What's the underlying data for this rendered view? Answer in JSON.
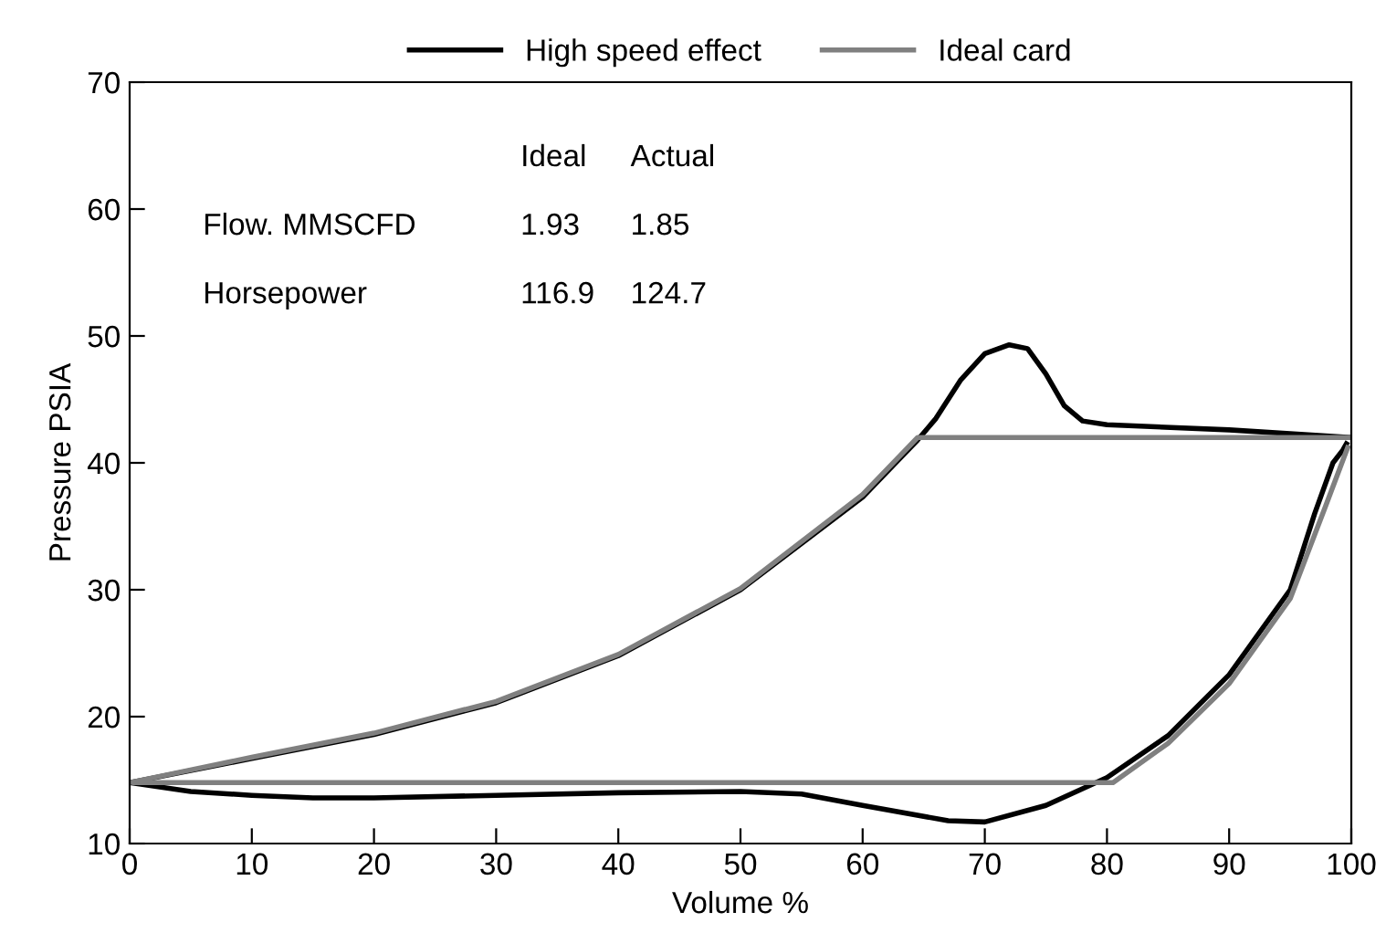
{
  "chart_data": {
    "type": "line",
    "xlabel": "Volume %",
    "ylabel": "Pressure PSIA",
    "xlim": [
      0,
      100
    ],
    "ylim": [
      10,
      70
    ],
    "xticks": [
      0,
      10,
      20,
      30,
      40,
      50,
      60,
      70,
      80,
      90,
      100
    ],
    "yticks": [
      10,
      20,
      30,
      40,
      50,
      60,
      70
    ],
    "grid": false,
    "legend": "top",
    "marker": "none",
    "line_style": "solid",
    "annotations": [
      "Ideal",
      "Actual",
      "Flow. MMSCFD",
      "1.93",
      "1.85",
      "Horsepower",
      "116.9",
      "124.7"
    ],
    "series": [
      {
        "name": "High speed effect",
        "color": "#000000",
        "x": [
          0,
          10,
          20,
          30,
          40,
          50,
          60,
          64.5,
          66,
          68,
          70,
          72,
          73.5,
          75,
          76.5,
          78,
          80,
          90,
          100
        ],
        "values": [
          14.8,
          16.7,
          18.6,
          21.1,
          24.8,
          30,
          37.3,
          41.8,
          43.5,
          46.5,
          48.6,
          49.3,
          49,
          47,
          44.5,
          43.3,
          43,
          42.6,
          42
        ]
      },
      {
        "color": "#000000",
        "x": [
          0,
          5,
          10,
          15,
          20,
          30,
          40,
          50,
          55,
          60,
          67,
          70,
          75,
          80,
          85,
          90,
          95,
          97,
          98.5,
          99.3,
          99.6
        ],
        "values": [
          14.8,
          14.1,
          13.8,
          13.6,
          13.6,
          13.8,
          14,
          14.1,
          13.9,
          13,
          11.8,
          11.7,
          13,
          15.2,
          18.5,
          23.3,
          30,
          36,
          40,
          41,
          41.5
        ]
      },
      {
        "name": "Ideal card",
        "color": "#808080",
        "x": [
          0,
          10,
          20,
          30,
          40,
          50,
          60,
          64.5,
          100
        ],
        "values": [
          14.8,
          16.8,
          18.7,
          21.2,
          24.9,
          30.1,
          37.5,
          42,
          42
        ]
      },
      {
        "color": "#808080",
        "x": [
          0.4,
          80.5,
          85,
          90,
          95,
          97.9,
          99.7
        ],
        "values": [
          14.8,
          14.8,
          17.9,
          22.6,
          29.3,
          36.6,
          41.2
        ]
      }
    ]
  }
}
